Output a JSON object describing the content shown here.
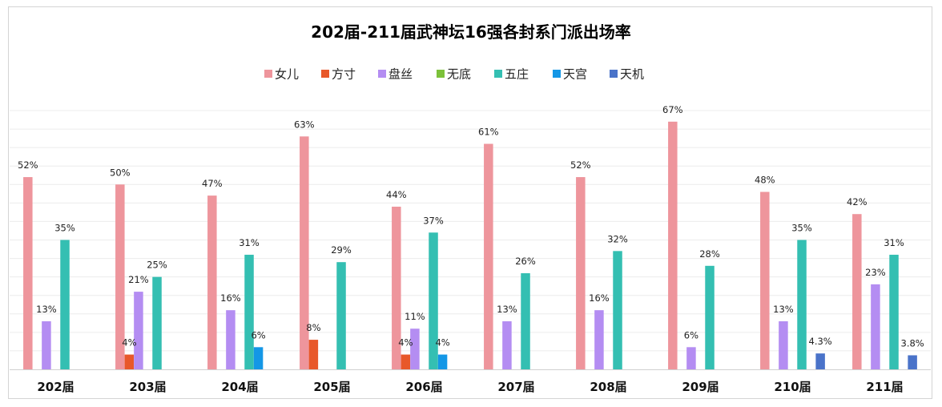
{
  "chart_data": {
    "type": "bar",
    "title": "202届-211届武神坛16强各封系门派出场率",
    "xlabel": "",
    "ylabel": "",
    "ylim": [
      0,
      0.7
    ],
    "grid": true,
    "legend_position": "top",
    "categories": [
      "202届",
      "203届",
      "204届",
      "205届",
      "206届",
      "207届",
      "208届",
      "209届",
      "210届",
      "211届"
    ],
    "series": [
      {
        "name": "女儿",
        "color": "#ee959c",
        "values": [
          0.52,
          0.5,
          0.47,
          0.63,
          0.44,
          0.61,
          0.52,
          0.67,
          0.48,
          0.42
        ],
        "labels": [
          "52%",
          "50%",
          "47%",
          "63%",
          "44%",
          "61%",
          "52%",
          "67%",
          "48%",
          "42%"
        ]
      },
      {
        "name": "方寸",
        "color": "#e8582a",
        "values": [
          null,
          0.04,
          null,
          0.08,
          0.04,
          null,
          null,
          null,
          null,
          null
        ],
        "labels": [
          null,
          "4%",
          null,
          "8%",
          "4%",
          null,
          null,
          null,
          null,
          null
        ]
      },
      {
        "name": "盘丝",
        "color": "#b48df2",
        "values": [
          0.13,
          0.21,
          0.16,
          null,
          0.11,
          0.13,
          0.16,
          0.06,
          0.13,
          0.23
        ],
        "labels": [
          "13%",
          "21%",
          "16%",
          null,
          "11%",
          "13%",
          "16%",
          "6%",
          "13%",
          "23%"
        ]
      },
      {
        "name": "无底",
        "color": "#7cc13a",
        "values": [
          null,
          null,
          null,
          null,
          null,
          null,
          null,
          null,
          null,
          null
        ],
        "labels": [
          null,
          null,
          null,
          null,
          null,
          null,
          null,
          null,
          null,
          null
        ]
      },
      {
        "name": "五庄",
        "color": "#34bfb2",
        "values": [
          0.35,
          0.25,
          0.31,
          0.29,
          0.37,
          0.26,
          0.32,
          0.28,
          0.35,
          0.31
        ],
        "labels": [
          "35%",
          "25%",
          "31%",
          "29%",
          "37%",
          "26%",
          "32%",
          "28%",
          "35%",
          "31%"
        ]
      },
      {
        "name": "天宫",
        "color": "#1497e6",
        "values": [
          null,
          null,
          0.06,
          null,
          0.04,
          null,
          null,
          null,
          null,
          null
        ],
        "labels": [
          null,
          null,
          "6%",
          null,
          "4%",
          null,
          null,
          null,
          null,
          null
        ]
      },
      {
        "name": "天机",
        "color": "#4a73c9",
        "values": [
          null,
          null,
          null,
          null,
          null,
          null,
          null,
          null,
          0.043,
          0.038
        ],
        "labels": [
          null,
          null,
          null,
          null,
          null,
          null,
          null,
          null,
          "4.3%",
          "3.8%"
        ]
      }
    ]
  }
}
